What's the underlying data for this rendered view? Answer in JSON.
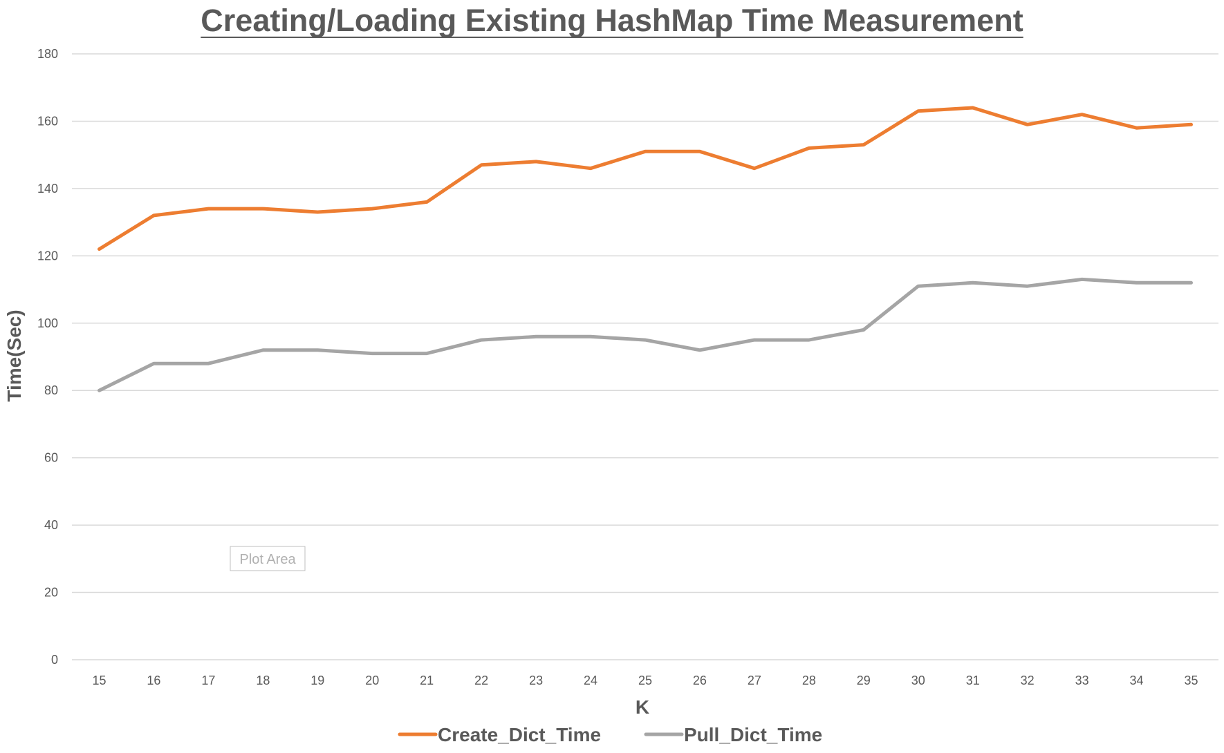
{
  "chart_data": {
    "type": "line",
    "title": "Creating/Loading Existing HashMap Time Measurement",
    "xlabel": "K",
    "ylabel": "Time(Sec)",
    "x": [
      15,
      16,
      17,
      18,
      19,
      20,
      21,
      22,
      23,
      24,
      25,
      26,
      27,
      28,
      29,
      30,
      31,
      32,
      33,
      34,
      35
    ],
    "ylim": [
      0,
      180
    ],
    "yticks": [
      0,
      20,
      40,
      60,
      80,
      100,
      120,
      140,
      160,
      180
    ],
    "grid": true,
    "legend_position": "bottom",
    "series": [
      {
        "name": "Create_Dict_Time",
        "color": "#ed7d31",
        "values": [
          122,
          132,
          134,
          134,
          133,
          134,
          136,
          147,
          148,
          146,
          151,
          151,
          146,
          152,
          153,
          163,
          164,
          159,
          162,
          158,
          159
        ]
      },
      {
        "name": "Pull_Dict_Time",
        "color": "#a5a5a5",
        "values": [
          80,
          88,
          88,
          92,
          92,
          91,
          91,
          95,
          96,
          96,
          95,
          92,
          95,
          95,
          98,
          111,
          112,
          111,
          113,
          112,
          112
        ]
      }
    ]
  },
  "tooltip": {
    "text": "Plot Area"
  }
}
